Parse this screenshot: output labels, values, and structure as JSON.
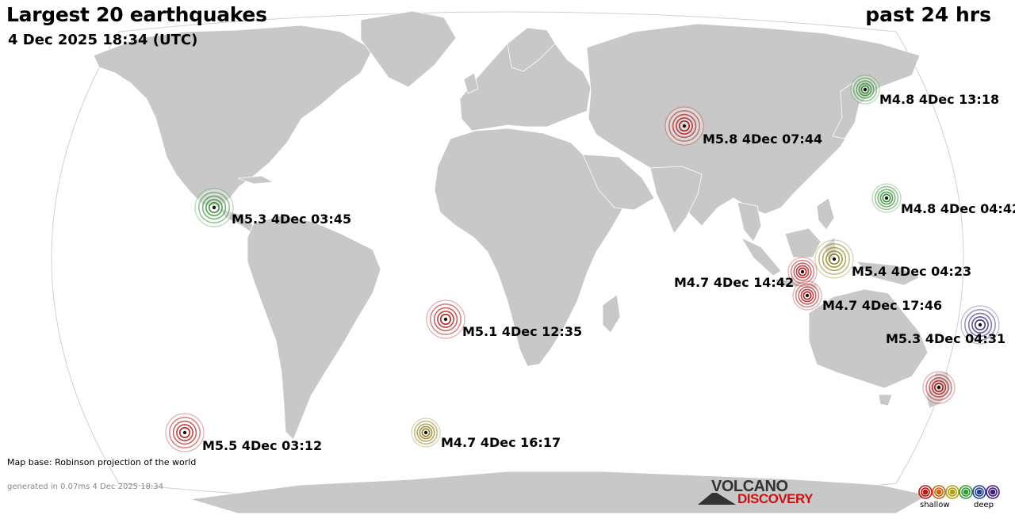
{
  "header": {
    "title": "Largest 20 earthquakes",
    "timestamp": "4 Dec 2025 18:34 (UTC)",
    "period": "past 24 hrs"
  },
  "earthquakes": [
    {
      "label": "M4.8  4Dec 13:18",
      "color": "#2e8b2e"
    },
    {
      "label": "M5.8  4Dec 07:44",
      "color": "#b01010"
    },
    {
      "label": "M5.3  4Dec 03:45",
      "color": "#2e8b2e"
    },
    {
      "label": "M4.8  4Dec 04:42",
      "color": "#2e8b2e"
    },
    {
      "label": "M4.7  4Dec 14:42",
      "color": "#b01010"
    },
    {
      "label": "M5.4  4Dec 04:23",
      "color": "#8a7a10"
    },
    {
      "label": "M4.7  4Dec 17:46",
      "color": "#b01010"
    },
    {
      "label": "M5.1  4Dec 12:35",
      "color": "#b01010"
    },
    {
      "label": "M5.3  4Dec 04:31",
      "color": "#3a2a80"
    },
    {
      "label": "",
      "color": "#b01010"
    },
    {
      "label": "M5.5  4Dec 03:12",
      "color": "#b01010"
    },
    {
      "label": "M4.7  4Dec 16:17",
      "color": "#8a7a10"
    }
  ],
  "footer": {
    "map_credit": "Map base: Robinson projection of the world",
    "generated": "generated in 0.07ms  4 Dec 2025 18:34",
    "logo_top": "VOLCANO",
    "logo_bottom": "DISCOVERY"
  },
  "legend": {
    "shallow_label": "shallow",
    "deep_label": "deep",
    "colors": [
      "#c01010",
      "#d06010",
      "#b0a010",
      "#2e9e2e",
      "#2040a0",
      "#401a80"
    ]
  },
  "colors": {
    "land": "#c8c8c8",
    "border": "#ffffff",
    "ocean": "#ffffff"
  }
}
